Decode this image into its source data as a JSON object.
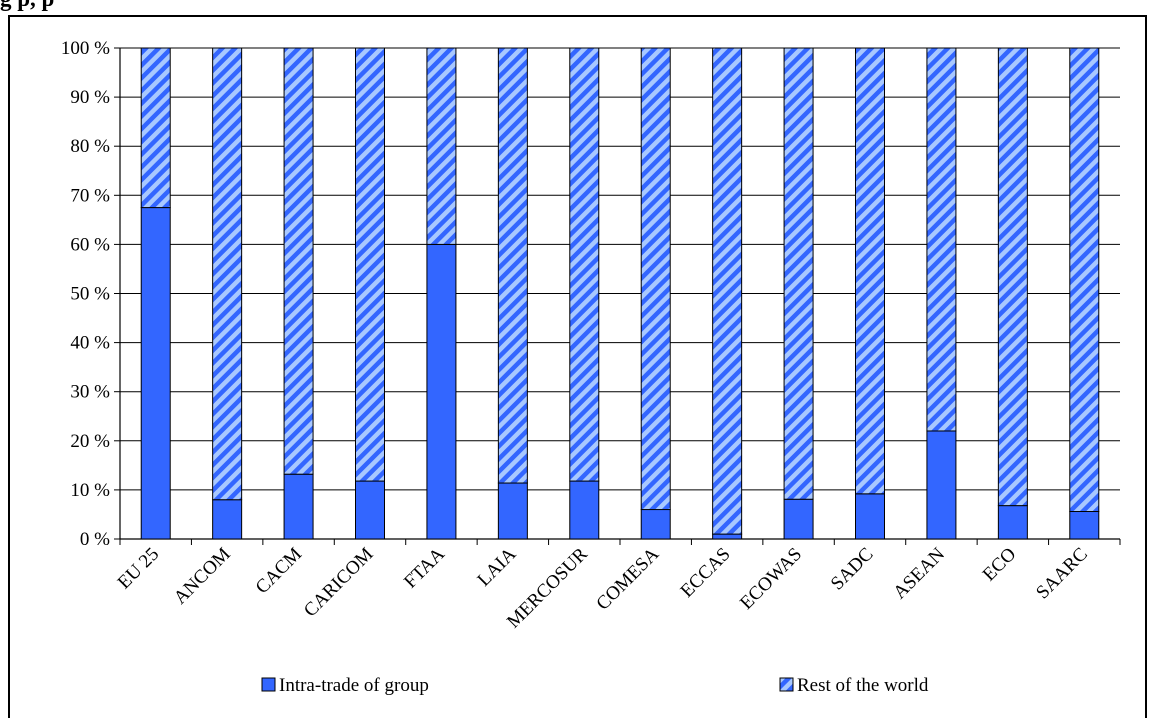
{
  "title": "g                                                        p,                                   p",
  "chart_data": {
    "type": "bar",
    "stacked": true,
    "percent": true,
    "categories": [
      "EU 25",
      "ANCOM",
      "CACM",
      "CARICOM",
      "FTAA",
      "LAIA",
      "MERCOSUR",
      "COMESA",
      "ECCAS",
      "ECOWAS",
      "SADC",
      "ASEAN",
      "ECO",
      "SAARC"
    ],
    "series": [
      {
        "name": "Intra-trade of group",
        "values": [
          67.5,
          8,
          13.2,
          11.8,
          60,
          11.4,
          11.8,
          6,
          1,
          8.1,
          9.2,
          22,
          6.8,
          5.6
        ],
        "color": "#3366ff",
        "pattern": "solid"
      },
      {
        "name": "Rest of the world",
        "values": [
          32.5,
          92,
          86.8,
          88.2,
          40,
          88.6,
          88.2,
          94,
          99,
          91.9,
          90.8,
          78,
          93.2,
          94.4
        ],
        "color": "#3366ff",
        "pattern": "diagonal-stripes"
      }
    ],
    "y_ticks": [
      "0 %",
      "10 %",
      "20 %",
      "30 %",
      "40 %",
      "50 %",
      "60 %",
      "70 %",
      "80 %",
      "90 %",
      "100 %"
    ],
    "ylim": [
      0,
      100
    ],
    "xlabel": "",
    "ylabel": "",
    "grid": true,
    "legend": "bottom"
  }
}
